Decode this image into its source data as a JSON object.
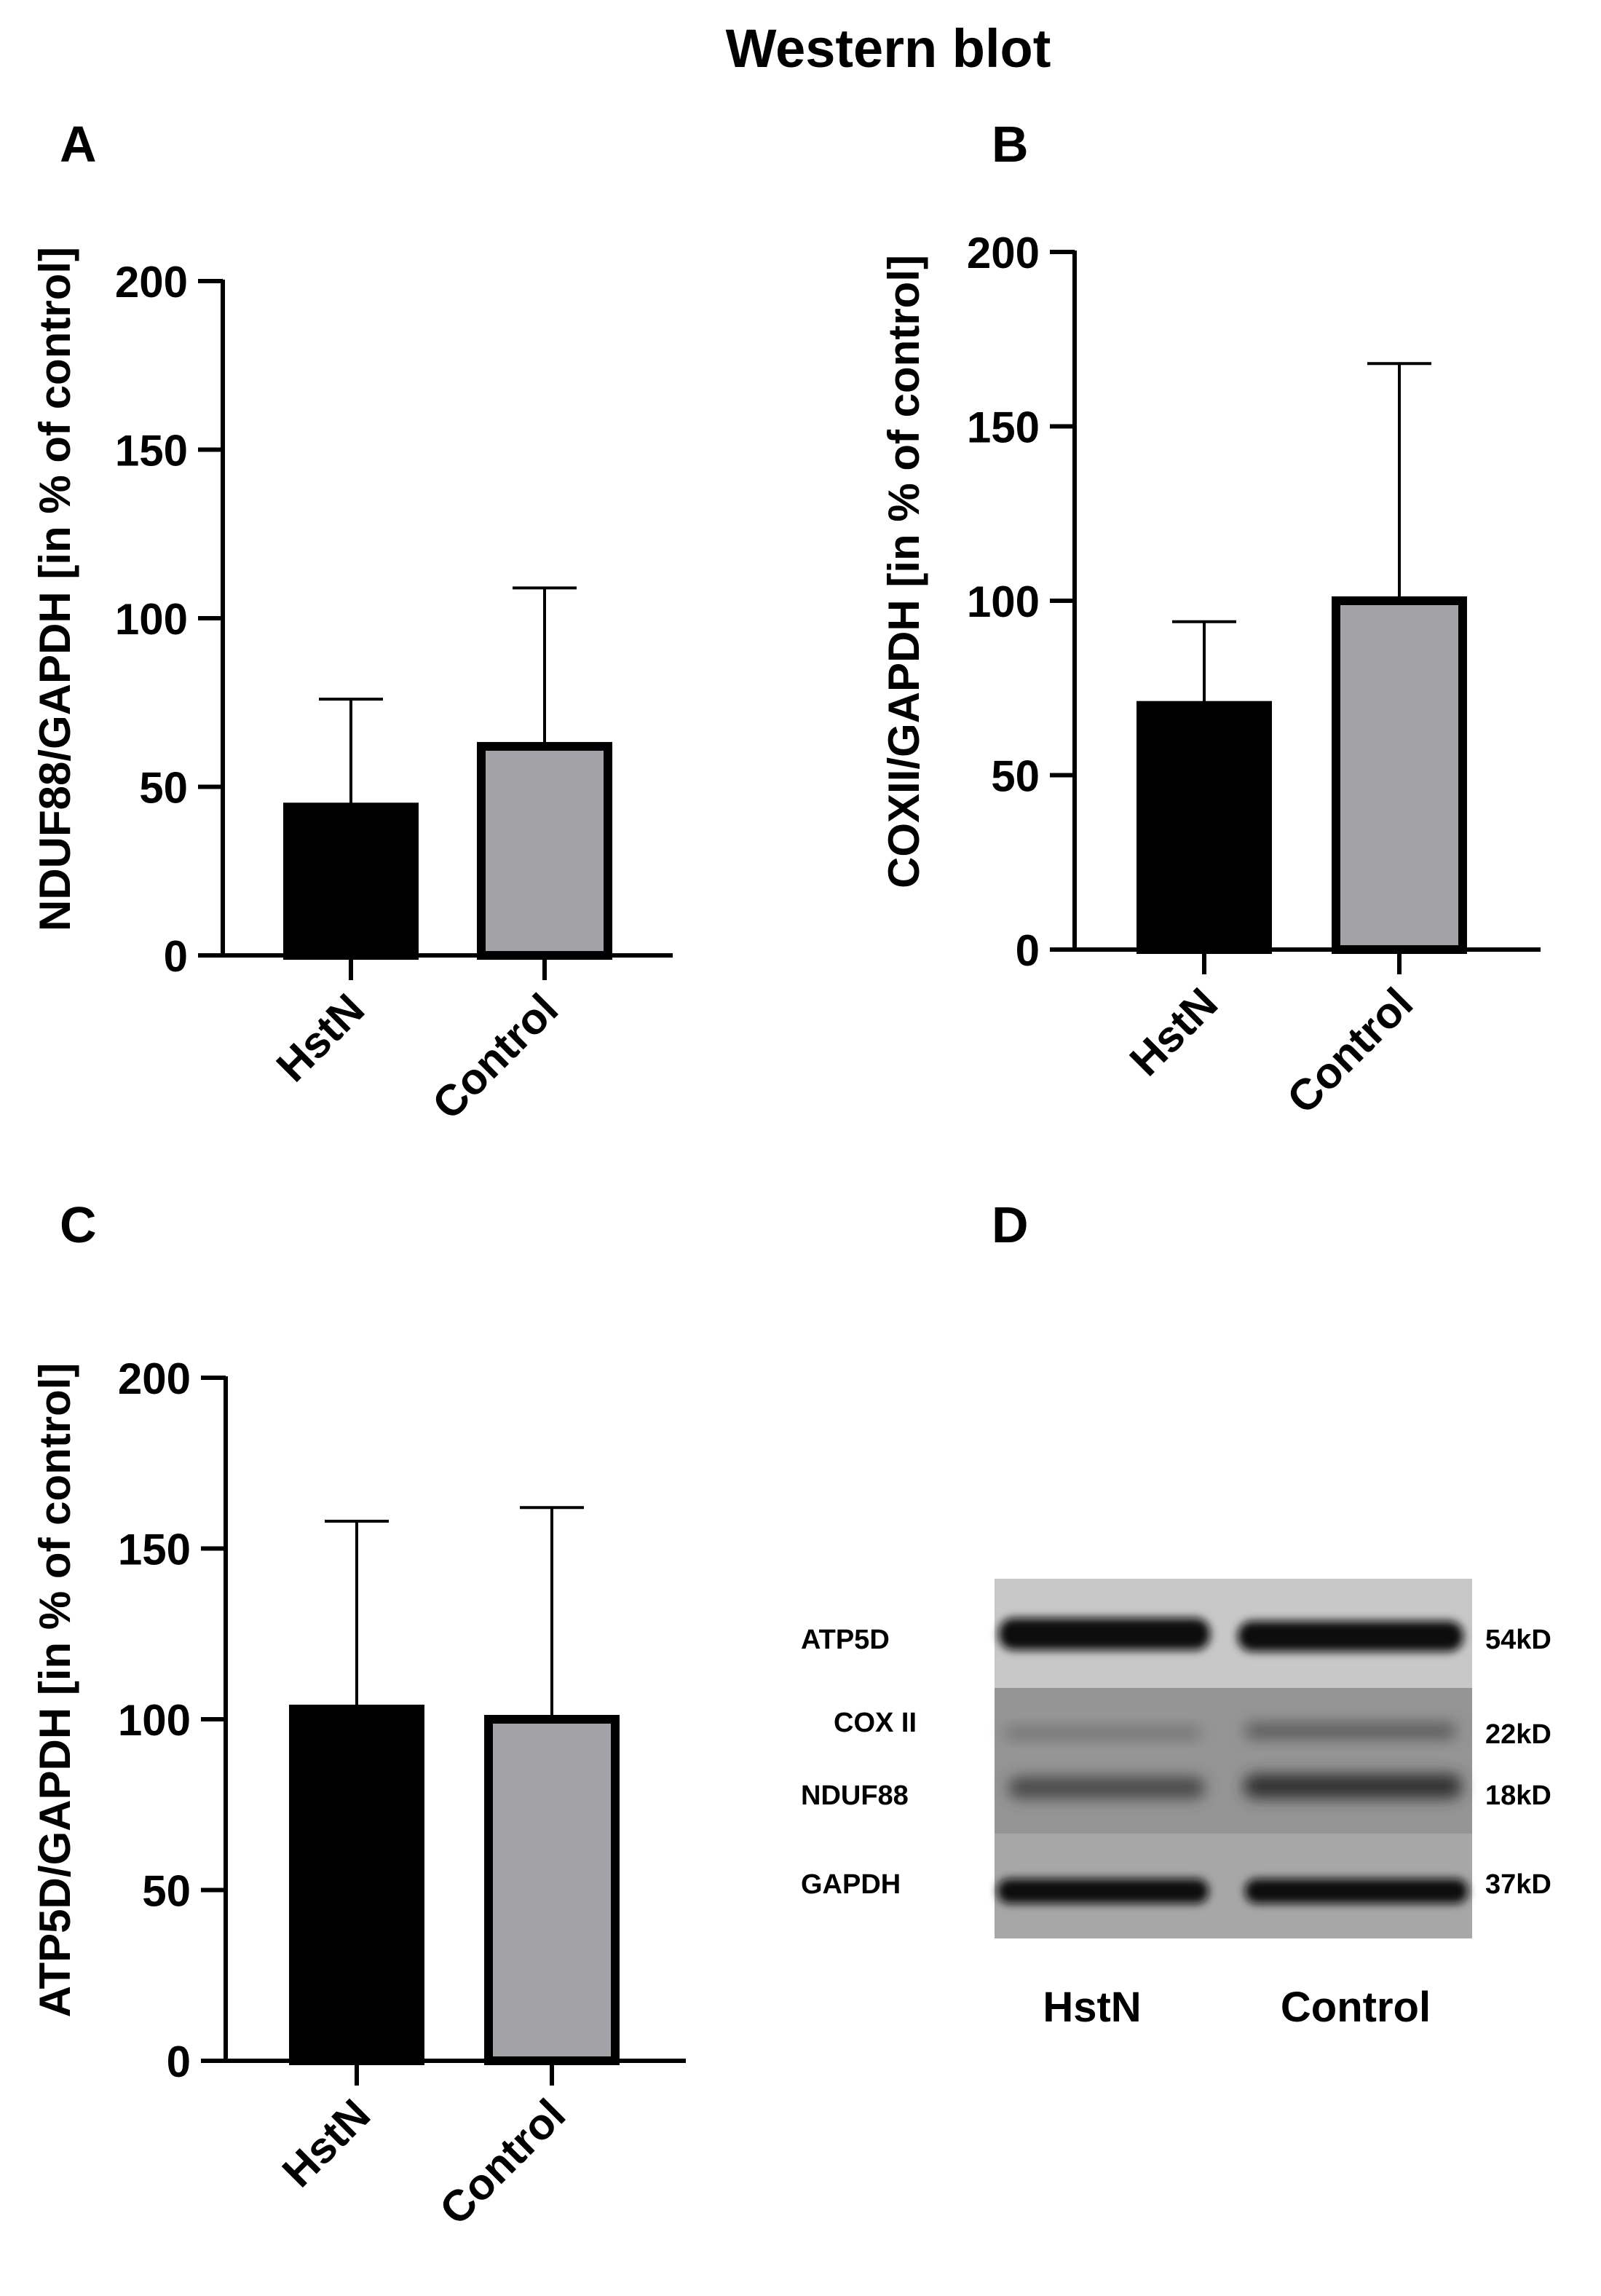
{
  "figure_title": "Western blot",
  "colors": {
    "hstn_bar": "#000000",
    "control_bar": "#a3a2a7",
    "axis": "#000000",
    "blot_background": "#8c8c8c",
    "blot_band": "#111111"
  },
  "chart_data": [
    {
      "panel": "A",
      "type": "bar",
      "categories": [
        "HstN",
        "Control"
      ],
      "values": [
        44,
        62
      ],
      "errors_upper": [
        76,
        109
      ],
      "ylabel": "NDUF88/GAPDH [in % of control]",
      "ylim": [
        0,
        200
      ],
      "yticks": [
        0,
        50,
        100,
        150,
        200
      ]
    },
    {
      "panel": "B",
      "type": "bar",
      "categories": [
        "HstN",
        "Control"
      ],
      "values": [
        70,
        100
      ],
      "errors_upper": [
        94,
        168
      ],
      "ylabel": "COXII/GAPDH [in % of control]",
      "ylim": [
        0,
        200
      ],
      "yticks": [
        0,
        50,
        100,
        150,
        200
      ]
    },
    {
      "panel": "C",
      "type": "bar",
      "categories": [
        "HstN",
        "Control"
      ],
      "values": [
        103,
        100
      ],
      "errors_upper": [
        158,
        162
      ],
      "ylabel": "ATP5D/GAPDH [in % of control]",
      "ylim": [
        0,
        200
      ],
      "yticks": [
        0,
        50,
        100,
        150,
        200
      ]
    }
  ],
  "blot": {
    "panel": "D",
    "proteins": [
      "ATP5D",
      "COX II",
      "NDUF88",
      "GAPDH"
    ],
    "sizes": [
      "54kD",
      "22kD",
      "18kD",
      "37kD"
    ],
    "lanes": [
      "HstN",
      "Control"
    ]
  }
}
